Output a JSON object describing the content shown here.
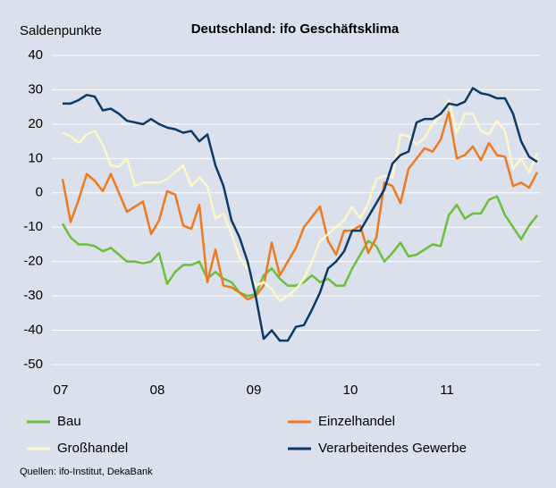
{
  "chart_data": {
    "type": "line",
    "title": "Deutschland: ifo Geschäftsklima",
    "y_label": "Saldenpunkte",
    "source": "Quellen: ifo-Institut, DekaBank",
    "categories": [
      "07",
      null,
      null,
      null,
      null,
      null,
      null,
      null,
      null,
      null,
      null,
      null,
      "08",
      null,
      null,
      null,
      null,
      null,
      null,
      null,
      null,
      null,
      null,
      null,
      "09",
      null,
      null,
      null,
      null,
      null,
      null,
      null,
      null,
      null,
      null,
      null,
      "10",
      null,
      null,
      null,
      null,
      null,
      null,
      null,
      null,
      null,
      null,
      null,
      "11",
      null,
      null,
      null,
      null,
      null,
      null,
      null,
      null,
      null,
      null,
      null
    ],
    "ylim": [
      -50,
      40
    ],
    "yticks": [
      -50,
      -40,
      -30,
      -20,
      -10,
      0,
      10,
      20,
      30,
      40
    ],
    "grid": true,
    "legend": "bottom",
    "series": [
      {
        "name": "Bau",
        "color": "#6cbf3a",
        "values": [
          -9,
          -13,
          -15,
          -15,
          -15.5,
          -17,
          -16,
          -18,
          -20,
          -20,
          -20.5,
          -20,
          -17.5,
          -26.5,
          -23,
          -21,
          -21,
          -20,
          -25,
          -23,
          -25,
          -26,
          -29,
          -30,
          -29.5,
          -24,
          -22,
          -25,
          -27,
          -27,
          -26,
          -24,
          -26,
          -25,
          -27,
          -27,
          -22,
          -18,
          -14,
          -15.5,
          -20,
          -17.5,
          -14.5,
          -18.5,
          -18,
          -16.5,
          -15,
          -15.5,
          -6.5,
          -3.5,
          -7.5,
          -6,
          -6,
          -2,
          -1,
          -6.5,
          -10,
          -13.5,
          -9.5,
          -6.5
        ]
      },
      {
        "name": "Einzelhandel",
        "color": "#ee7a1f",
        "values": [
          4,
          -8.5,
          -2,
          5.5,
          3.5,
          0.5,
          5.5,
          0,
          -5.5,
          -4,
          -2.5,
          -12,
          -8,
          0.5,
          -0.5,
          -9.5,
          -10.5,
          -3.5,
          -26,
          -16.5,
          -27,
          -27.5,
          -29,
          -31,
          -30,
          -27,
          -14.5,
          -24,
          -20,
          -16,
          -10,
          -7,
          -4,
          -14,
          -18,
          -11,
          -11,
          -9.5,
          -17.5,
          -13,
          3,
          2,
          -3,
          7,
          10,
          13,
          12,
          15.5,
          23.5,
          10,
          11,
          13.5,
          9.5,
          14.5,
          11,
          10.5,
          2,
          3,
          1.5,
          6
        ]
      },
      {
        "name": "Großhandel",
        "color": "#fdf7c9",
        "values": [
          17.5,
          16.5,
          14.5,
          17,
          18,
          14,
          8,
          7.5,
          10,
          2,
          3,
          3,
          3,
          4,
          6,
          8,
          2,
          4.5,
          2,
          -7.5,
          -6,
          -12,
          -19,
          -22,
          -27,
          -26,
          -28,
          -31.5,
          -30,
          -28,
          -25,
          -20,
          -14,
          -12,
          -10,
          -8,
          -4,
          -7.5,
          -3,
          4,
          5,
          4.5,
          17,
          16.5,
          14,
          16,
          20,
          22.5,
          27,
          17.5,
          23,
          23,
          18,
          17,
          21,
          18,
          7,
          10,
          6,
          11.5
        ]
      },
      {
        "name": "Verarbeitendes Gewerbe",
        "color": "#0c3a66",
        "values": [
          26,
          26,
          27,
          28.5,
          28,
          24,
          24.5,
          23,
          21,
          20.5,
          20,
          21.5,
          20,
          19,
          18.5,
          17.5,
          18,
          15,
          17,
          8,
          2,
          -8,
          -13,
          -20,
          -30,
          -42.5,
          -40,
          -43,
          -43,
          -39,
          -38.5,
          -34,
          -29,
          -22,
          -20,
          -17,
          -11,
          -11,
          -7,
          -3,
          1,
          8.5,
          11,
          12,
          20.5,
          21.5,
          21.5,
          23,
          26,
          25.5,
          26.5,
          30.5,
          29,
          28.5,
          27.5,
          27.5,
          23,
          15,
          10.5,
          9
        ]
      }
    ]
  }
}
